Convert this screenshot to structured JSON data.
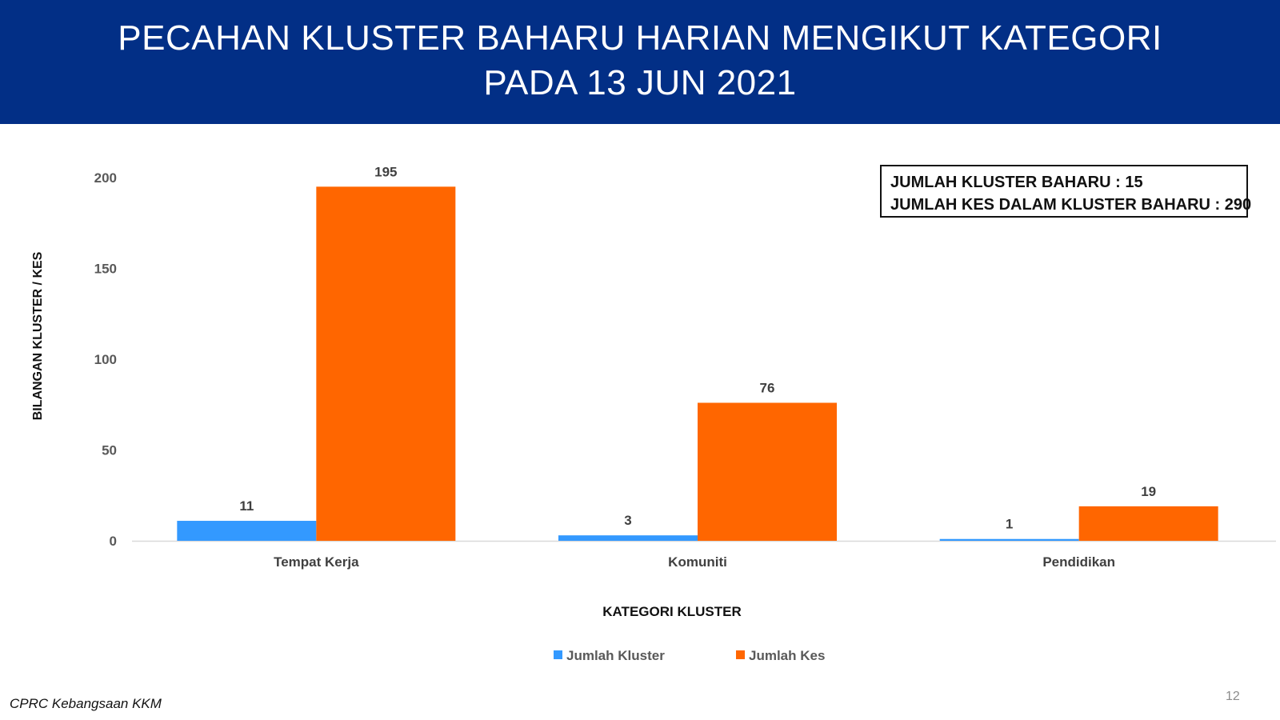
{
  "header": {
    "title_line1": "PECAHAN KLUSTER BAHARU HARIAN MENGIKUT KATEGORI",
    "title_line2": "PADA 13 JUN 2021",
    "background": "#022f86"
  },
  "summary": {
    "line1": "JUMLAH KLUSTER BAHARU : 15",
    "line2": "JUMLAH KES DALAM KLUSTER BAHARU : 290"
  },
  "chart_data": {
    "type": "bar",
    "categories": [
      "Tempat Kerja",
      "Komuniti",
      "Pendidikan"
    ],
    "series": [
      {
        "name": "Jumlah Kluster",
        "color": "#3399ff",
        "values": [
          11,
          3,
          1
        ]
      },
      {
        "name": "Jumlah Kes",
        "color": "#ff6600",
        "values": [
          195,
          76,
          19
        ]
      }
    ],
    "xlabel": "KATEGORI KLUSTER",
    "ylabel": "BILANGAN KLUSTER / KES",
    "ylim": [
      0,
      200
    ],
    "yticks": [
      0,
      50,
      100,
      150,
      200
    ],
    "grid": false,
    "legend": "bottom-center",
    "data_labels": true
  },
  "footer": {
    "source": "CPRC Kebangsaan KKM",
    "page_number": "12"
  }
}
